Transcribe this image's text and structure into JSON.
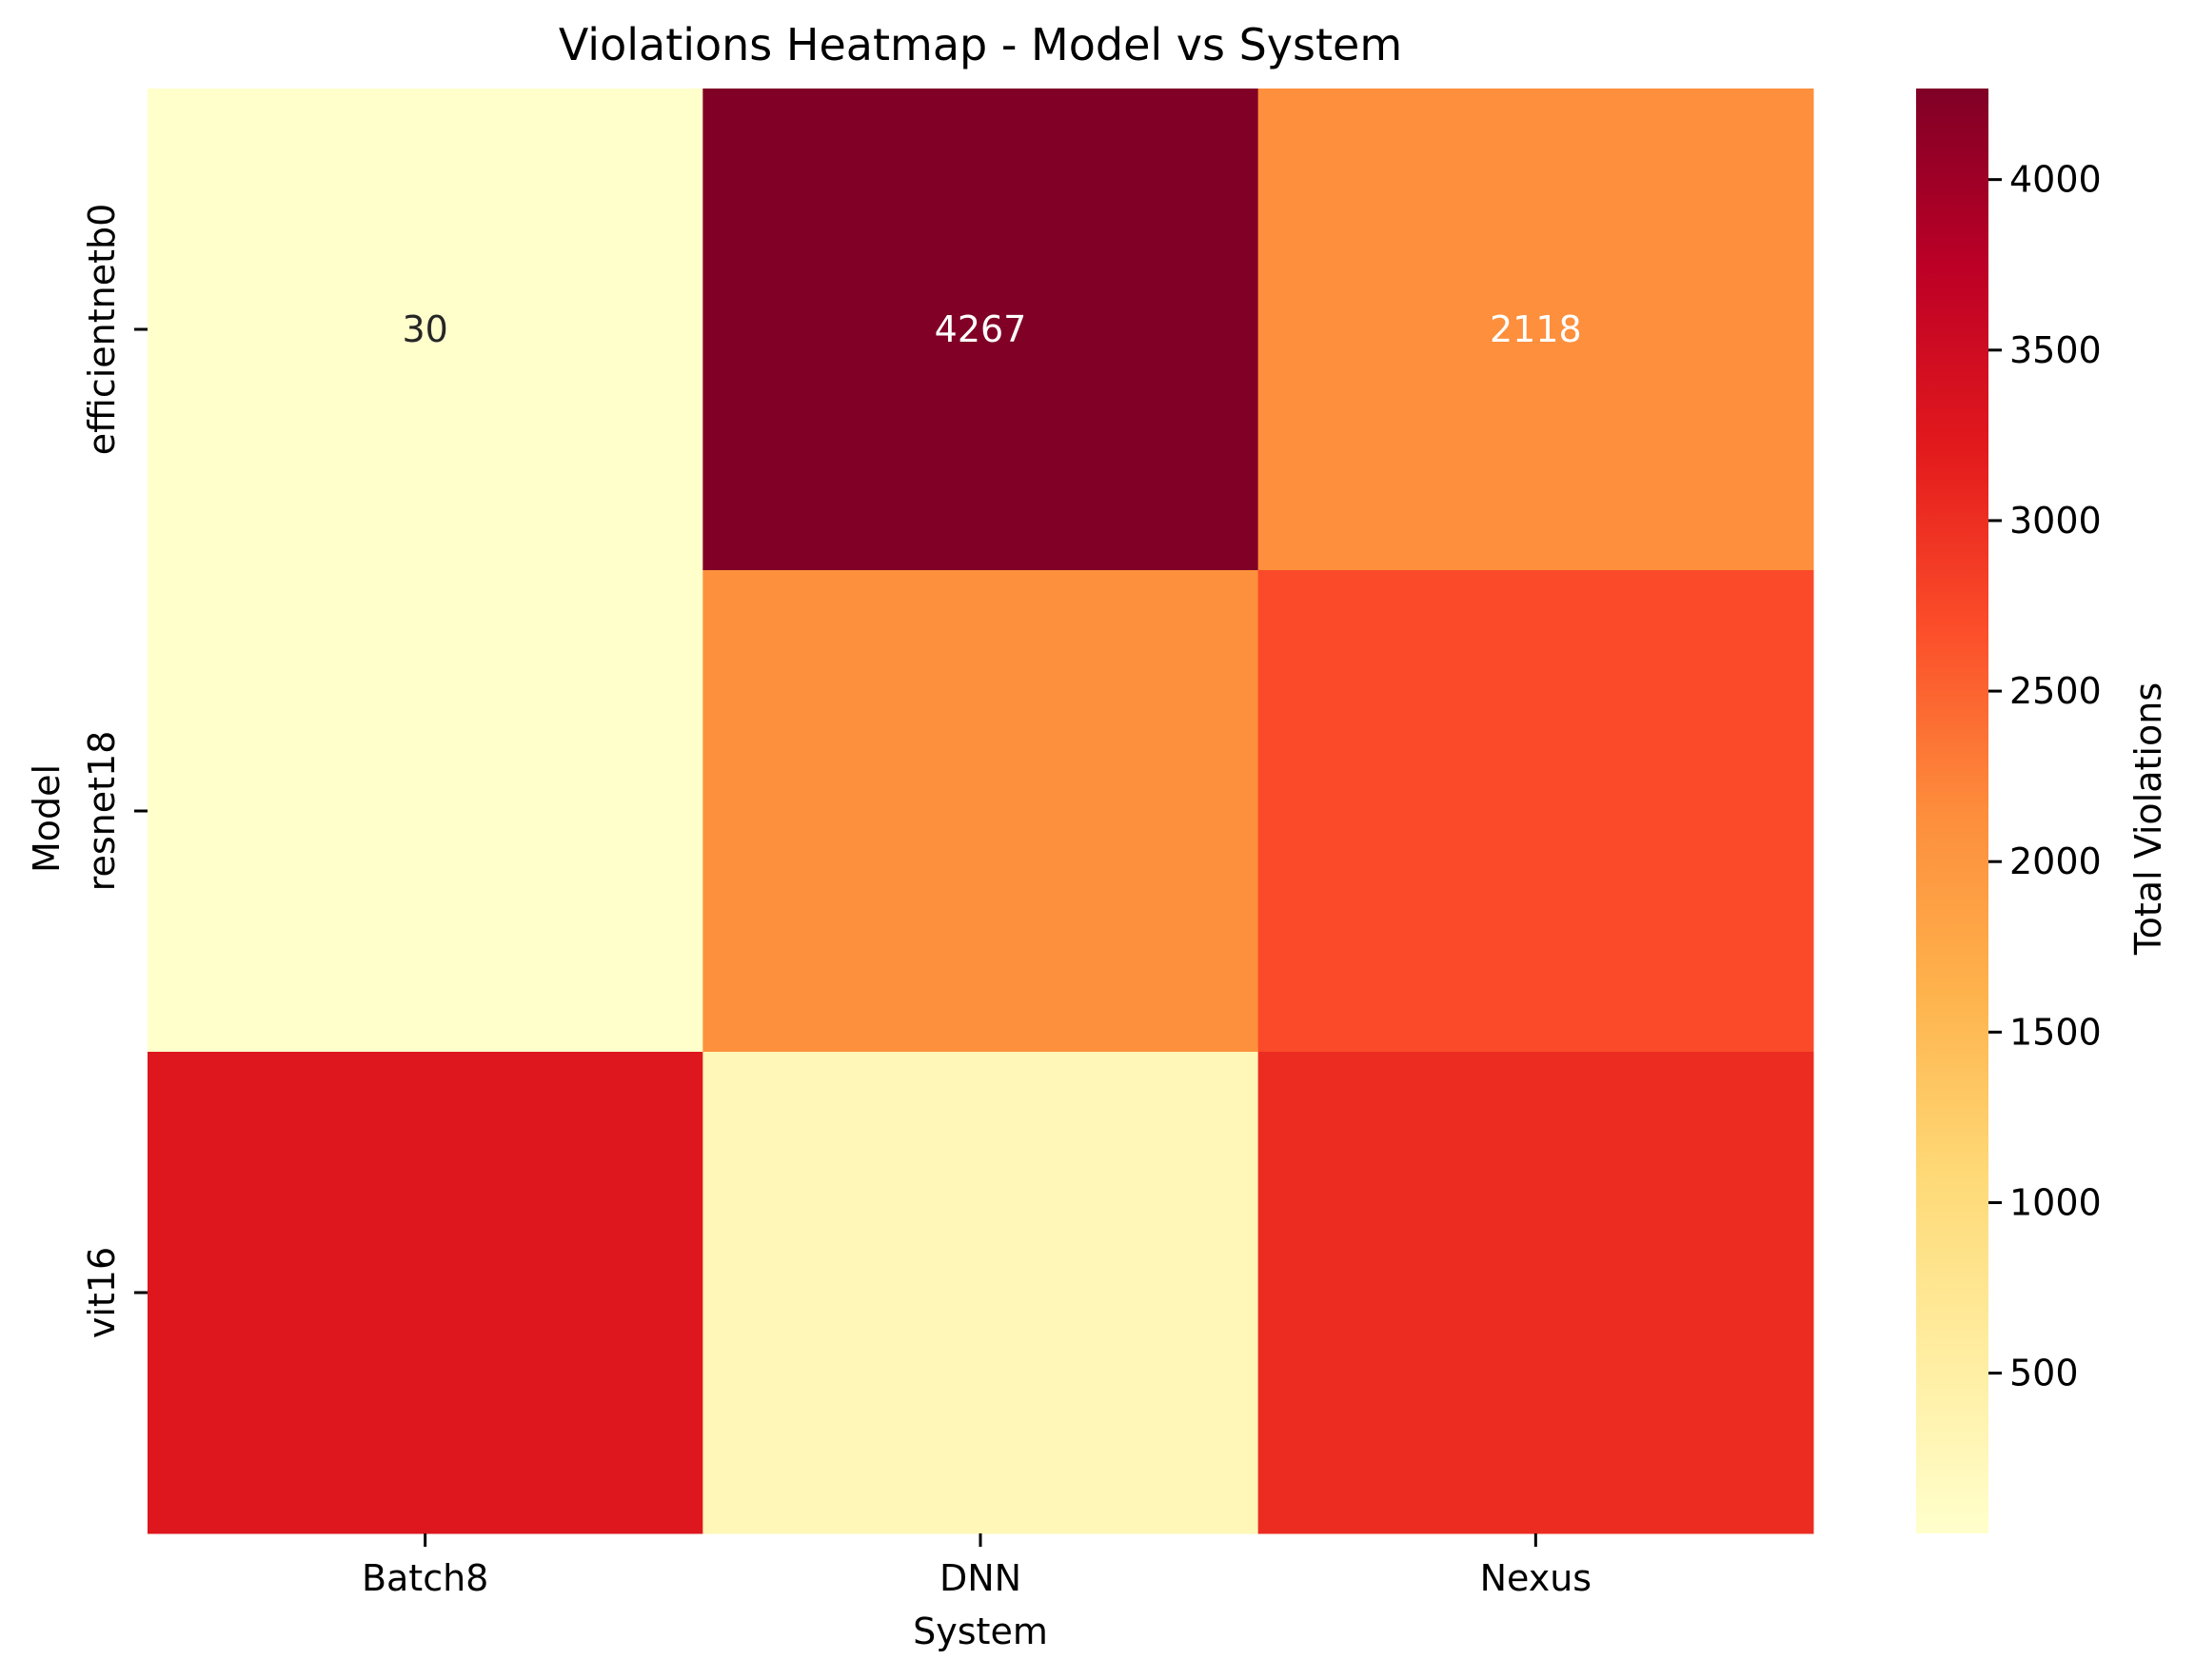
{
  "chart_data": {
    "type": "heatmap",
    "title": "Violations Heatmap - Model vs System",
    "xlabel": "System",
    "ylabel": "Model",
    "x_categories": [
      "Batch8",
      "DNN",
      "Nexus"
    ],
    "y_categories": [
      "efficientnetb0",
      "resnet18",
      "vit16"
    ],
    "values": [
      [
        30,
        4267,
        2118
      ],
      [
        30,
        2110,
        2720
      ],
      [
        3280,
        280,
        3020
      ]
    ],
    "annotations": [
      [
        "30",
        "4267",
        "2118"
      ],
      [
        "",
        "",
        ""
      ],
      [
        "",
        "",
        ""
      ]
    ],
    "colormap": "YlOrRd",
    "colorbar": {
      "label": "Total Violations",
      "range": [
        30,
        4267
      ],
      "ticks": [
        "500",
        "1000",
        "1500",
        "2000",
        "2500",
        "3000",
        "3500",
        "4000"
      ],
      "tick_values": [
        500,
        1000,
        1500,
        2000,
        2500,
        3000,
        3500,
        4000
      ]
    },
    "colors": [
      "#ffffcc",
      "#ffeda0",
      "#fed976",
      "#feb24c",
      "#fd8d3c",
      "#fc4e2a",
      "#e31a1c",
      "#bd0026",
      "#800026"
    ]
  }
}
